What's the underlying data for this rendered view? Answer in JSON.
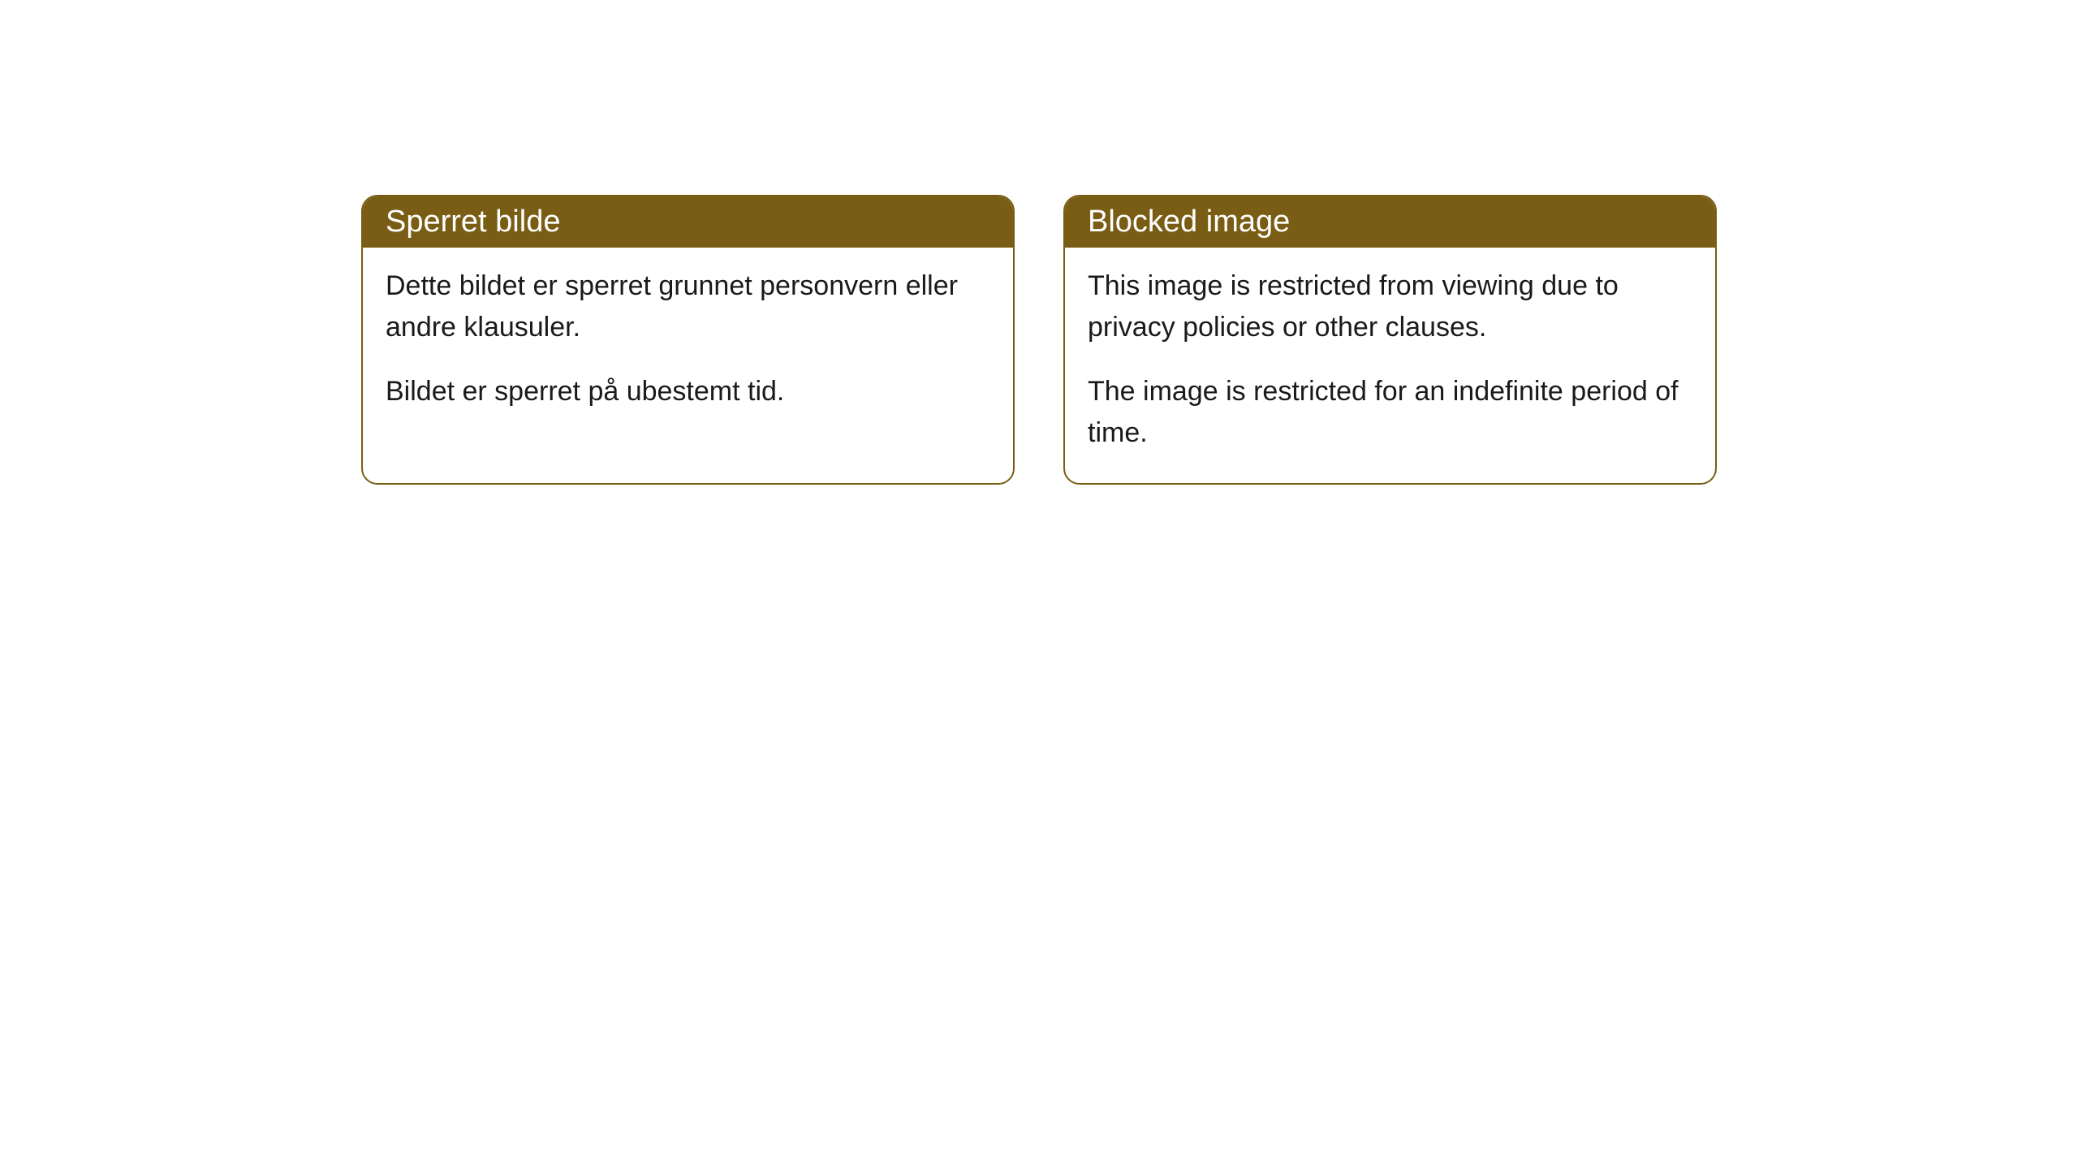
{
  "cards": [
    {
      "title": "Sperret bilde",
      "paragraph1": "Dette bildet er sperret grunnet personvern eller andre klausuler.",
      "paragraph2": "Bildet er sperret på ubestemt tid."
    },
    {
      "title": "Blocked image",
      "paragraph1": "This image is restricted from viewing due to privacy policies or other clauses.",
      "paragraph2": "The image is restricted for an indefinite period of time."
    }
  ],
  "styling": {
    "header_bg_color": "#7a5d14",
    "header_text_color": "#ffffff",
    "border_color": "#7a5d14",
    "body_bg_color": "#ffffff",
    "body_text_color": "#1a1a1a",
    "border_radius": 20,
    "title_fontsize": 38,
    "body_fontsize": 34
  }
}
